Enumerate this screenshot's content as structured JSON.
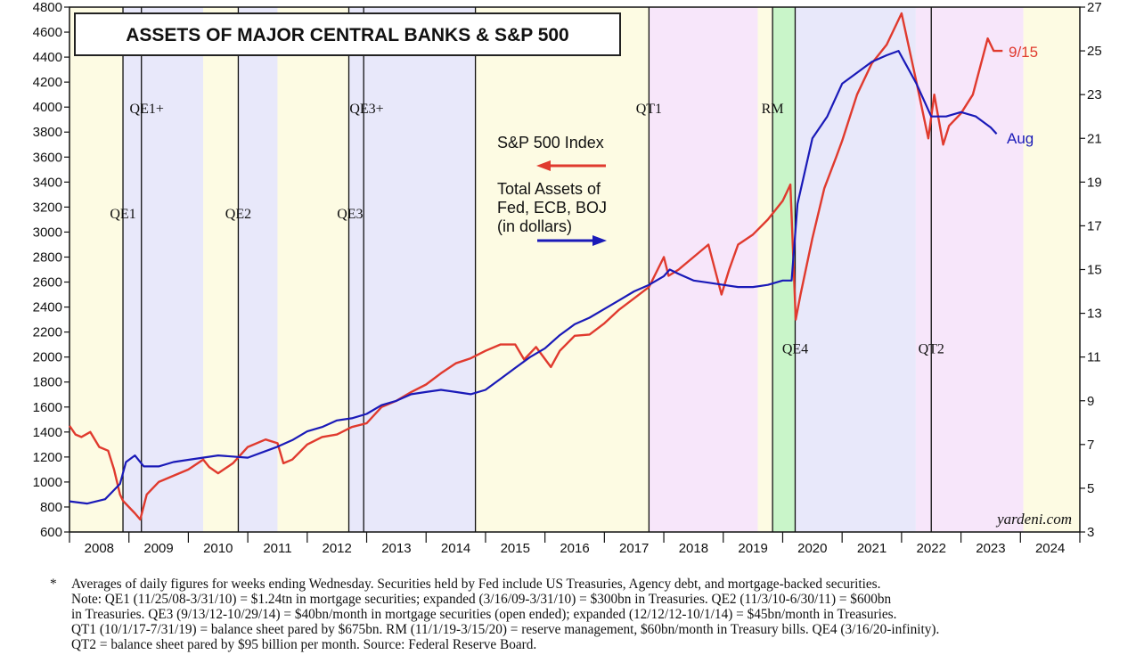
{
  "chart_data": {
    "type": "line",
    "title": "ASSETS OF MAJOR CENTRAL BANKS & S&P 500",
    "source": "yardeni.com",
    "x_ticks": [
      "2008",
      "2009",
      "2010",
      "2011",
      "2012",
      "2013",
      "2014",
      "2015",
      "2016",
      "2017",
      "2018",
      "2019",
      "2020",
      "2021",
      "2022",
      "2023",
      "2024"
    ],
    "xlim": [
      2008,
      2025
    ],
    "y_left": {
      "ticks": [
        600,
        800,
        1000,
        1200,
        1400,
        1600,
        1800,
        2000,
        2200,
        2400,
        2600,
        2800,
        3000,
        3200,
        3400,
        3600,
        3800,
        4000,
        4200,
        4400,
        4600,
        4800
      ],
      "range": [
        600,
        4800
      ]
    },
    "y_right": {
      "ticks": [
        3,
        5,
        7,
        9,
        11,
        13,
        15,
        17,
        19,
        21,
        23,
        25,
        27
      ],
      "range": [
        3,
        27
      ]
    },
    "legend": {
      "sp500": "S&P 500 Index",
      "assets_lines": [
        "Total Assets of",
        "Fed, ECB, BOJ",
        "(in dollars)"
      ]
    },
    "end_labels": {
      "sp500": "9/15",
      "assets": "Aug"
    },
    "colors": {
      "sp500": "#e03a2e",
      "assets": "#1a1ab8"
    },
    "periods": [
      {
        "name": "pre",
        "start": 2008.0,
        "end": 2008.9,
        "color": "#fdfbe3"
      },
      {
        "name": "QE1",
        "start": 2008.9,
        "end": 2010.25,
        "color": "#e8e8fa"
      },
      {
        "name": "gap1",
        "start": 2010.25,
        "end": 2010.84,
        "color": "#fdfbe3"
      },
      {
        "name": "QE2",
        "start": 2010.84,
        "end": 2011.5,
        "color": "#e8e8fa"
      },
      {
        "name": "gap2",
        "start": 2011.5,
        "end": 2012.7,
        "color": "#fdfbe3"
      },
      {
        "name": "QE3",
        "start": 2012.7,
        "end": 2014.83,
        "color": "#e8e8fa"
      },
      {
        "name": "gap3",
        "start": 2014.83,
        "end": 2017.75,
        "color": "#fdfbe3"
      },
      {
        "name": "QT1",
        "start": 2017.75,
        "end": 2019.58,
        "color": "#f7e6fa"
      },
      {
        "name": "gap4",
        "start": 2019.58,
        "end": 2019.83,
        "color": "#fdfbe3"
      },
      {
        "name": "RM",
        "start": 2019.83,
        "end": 2020.21,
        "color": "#c9f5c9"
      },
      {
        "name": "QE4",
        "start": 2020.21,
        "end": 2022.24,
        "color": "#e8e8fa"
      },
      {
        "name": "QT2",
        "start": 2022.24,
        "end": 2024.05,
        "color": "#f7e6fa"
      },
      {
        "name": "post",
        "start": 2024.05,
        "end": 2025.0,
        "color": "#fdfbe3"
      }
    ],
    "vlines": [
      2008.9,
      2009.21,
      2010.84,
      2012.7,
      2012.95,
      2014.83,
      2017.75,
      2019.83,
      2020.21,
      2022.5
    ],
    "annotations": [
      {
        "text": "QE1+",
        "x": 2009.3,
        "y": 3950
      },
      {
        "text": "QE1",
        "x": 2008.9,
        "y": 3110
      },
      {
        "text": "QE2",
        "x": 2010.84,
        "y": 3110
      },
      {
        "text": "QE3+",
        "x": 2013.0,
        "y": 3950
      },
      {
        "text": "QE3",
        "x": 2012.72,
        "y": 3110
      },
      {
        "text": "QT1",
        "x": 2017.75,
        "y": 3950
      },
      {
        "text": "RM",
        "x": 2019.83,
        "y": 3950
      },
      {
        "text": "QE4",
        "x": 2020.21,
        "y": 2030
      },
      {
        "text": "QT2",
        "x": 2022.5,
        "y": 2030
      }
    ],
    "series": [
      {
        "name": "S&P 500 Index",
        "axis": "left",
        "x": [
          2008.0,
          2008.1,
          2008.2,
          2008.35,
          2008.5,
          2008.65,
          2008.75,
          2008.85,
          2008.9,
          2009.0,
          2009.1,
          2009.19,
          2009.3,
          2009.5,
          2009.75,
          2010.0,
          2010.25,
          2010.35,
          2010.5,
          2010.75,
          2011.0,
          2011.3,
          2011.5,
          2011.6,
          2011.75,
          2012.0,
          2012.25,
          2012.5,
          2012.75,
          2013.0,
          2013.25,
          2013.5,
          2013.75,
          2014.0,
          2014.25,
          2014.5,
          2014.75,
          2015.0,
          2015.25,
          2015.5,
          2015.65,
          2015.85,
          2016.1,
          2016.25,
          2016.5,
          2016.75,
          2017.0,
          2017.25,
          2017.5,
          2017.75,
          2018.0,
          2018.08,
          2018.25,
          2018.5,
          2018.75,
          2018.97,
          2019.1,
          2019.25,
          2019.5,
          2019.75,
          2020.0,
          2020.13,
          2020.22,
          2020.3,
          2020.5,
          2020.7,
          2020.9,
          2021.0,
          2021.25,
          2021.5,
          2021.75,
          2022.0,
          2022.25,
          2022.45,
          2022.55,
          2022.7,
          2022.8,
          2023.0,
          2023.2,
          2023.45,
          2023.55,
          2023.7
        ],
        "y": [
          1450,
          1380,
          1360,
          1400,
          1280,
          1250,
          1100,
          900,
          850,
          800,
          750,
          700,
          900,
          1000,
          1050,
          1100,
          1180,
          1120,
          1070,
          1150,
          1280,
          1340,
          1310,
          1150,
          1180,
          1300,
          1360,
          1380,
          1440,
          1470,
          1600,
          1650,
          1720,
          1780,
          1870,
          1950,
          1990,
          2050,
          2100,
          2100,
          1980,
          2080,
          1920,
          2050,
          2170,
          2180,
          2270,
          2380,
          2470,
          2560,
          2800,
          2650,
          2700,
          2800,
          2900,
          2500,
          2700,
          2900,
          2980,
          3100,
          3250,
          3380,
          2300,
          2500,
          2950,
          3350,
          3600,
          3730,
          4100,
          4350,
          4500,
          4750,
          4200,
          3750,
          4100,
          3700,
          3850,
          3950,
          4100,
          4550,
          4450,
          4450
        ]
      },
      {
        "name": "Total Assets of Fed, ECB, BOJ (in dollars)",
        "axis": "right",
        "x": [
          2008.0,
          2008.3,
          2008.6,
          2008.85,
          2008.95,
          2009.1,
          2009.25,
          2009.5,
          2009.75,
          2010.0,
          2010.5,
          2011.0,
          2011.5,
          2011.75,
          2012.0,
          2012.25,
          2012.5,
          2012.75,
          2013.0,
          2013.25,
          2013.5,
          2013.75,
          2014.0,
          2014.25,
          2014.5,
          2014.75,
          2015.0,
          2015.25,
          2015.5,
          2015.75,
          2016.0,
          2016.25,
          2016.5,
          2016.75,
          2017.0,
          2017.25,
          2017.5,
          2017.75,
          2018.0,
          2018.1,
          2018.25,
          2018.5,
          2018.75,
          2019.0,
          2019.25,
          2019.5,
          2019.75,
          2020.0,
          2020.15,
          2020.25,
          2020.5,
          2020.75,
          2021.0,
          2021.25,
          2021.5,
          2021.75,
          2021.95,
          2022.25,
          2022.5,
          2022.75,
          2023.0,
          2023.25,
          2023.5,
          2023.6
        ],
        "y": [
          4.4,
          4.3,
          4.5,
          5.2,
          6.2,
          6.5,
          6.0,
          6.0,
          6.2,
          6.3,
          6.5,
          6.4,
          6.9,
          7.2,
          7.6,
          7.8,
          8.1,
          8.2,
          8.4,
          8.8,
          9.0,
          9.3,
          9.4,
          9.5,
          9.4,
          9.3,
          9.5,
          10.0,
          10.5,
          11.0,
          11.4,
          12.0,
          12.5,
          12.8,
          13.2,
          13.6,
          14.0,
          14.3,
          14.7,
          15.0,
          14.8,
          14.5,
          14.4,
          14.3,
          14.2,
          14.2,
          14.3,
          14.5,
          14.5,
          18.0,
          21.0,
          22.0,
          23.5,
          24.0,
          24.5,
          24.8,
          25.0,
          23.5,
          22.0,
          22.0,
          22.2,
          22.0,
          21.5,
          21.2
        ]
      }
    ]
  },
  "footnote": {
    "star": "*",
    "lines": [
      "Averages of daily figures for weeks ending Wednesday. Securities held by Fed include US Treasuries, Agency debt, and mortgage-backed securities.",
      "Note: QE1 (11/25/08-3/31/10) = $1.24tn in mortgage securities; expanded (3/16/09-3/31/10) = $300bn in Treasuries. QE2 (11/3/10-6/30/11) = $600bn",
      "in Treasuries. QE3 (9/13/12-10/29/14) = $40bn/month in mortgage securities (open ended); expanded (12/12/12-10/1/14) = $45bn/month in Treasuries.",
      "QT1 (10/1/17-7/31/19) = balance sheet pared by $675bn. RM (11/1/19-3/15/20) = reserve management, $60bn/month in Treasury bills. QE4 (3/16/20-infinity).",
      "QT2 = balance sheet pared by $95 billion per month. Source: Federal Reserve Board."
    ]
  }
}
